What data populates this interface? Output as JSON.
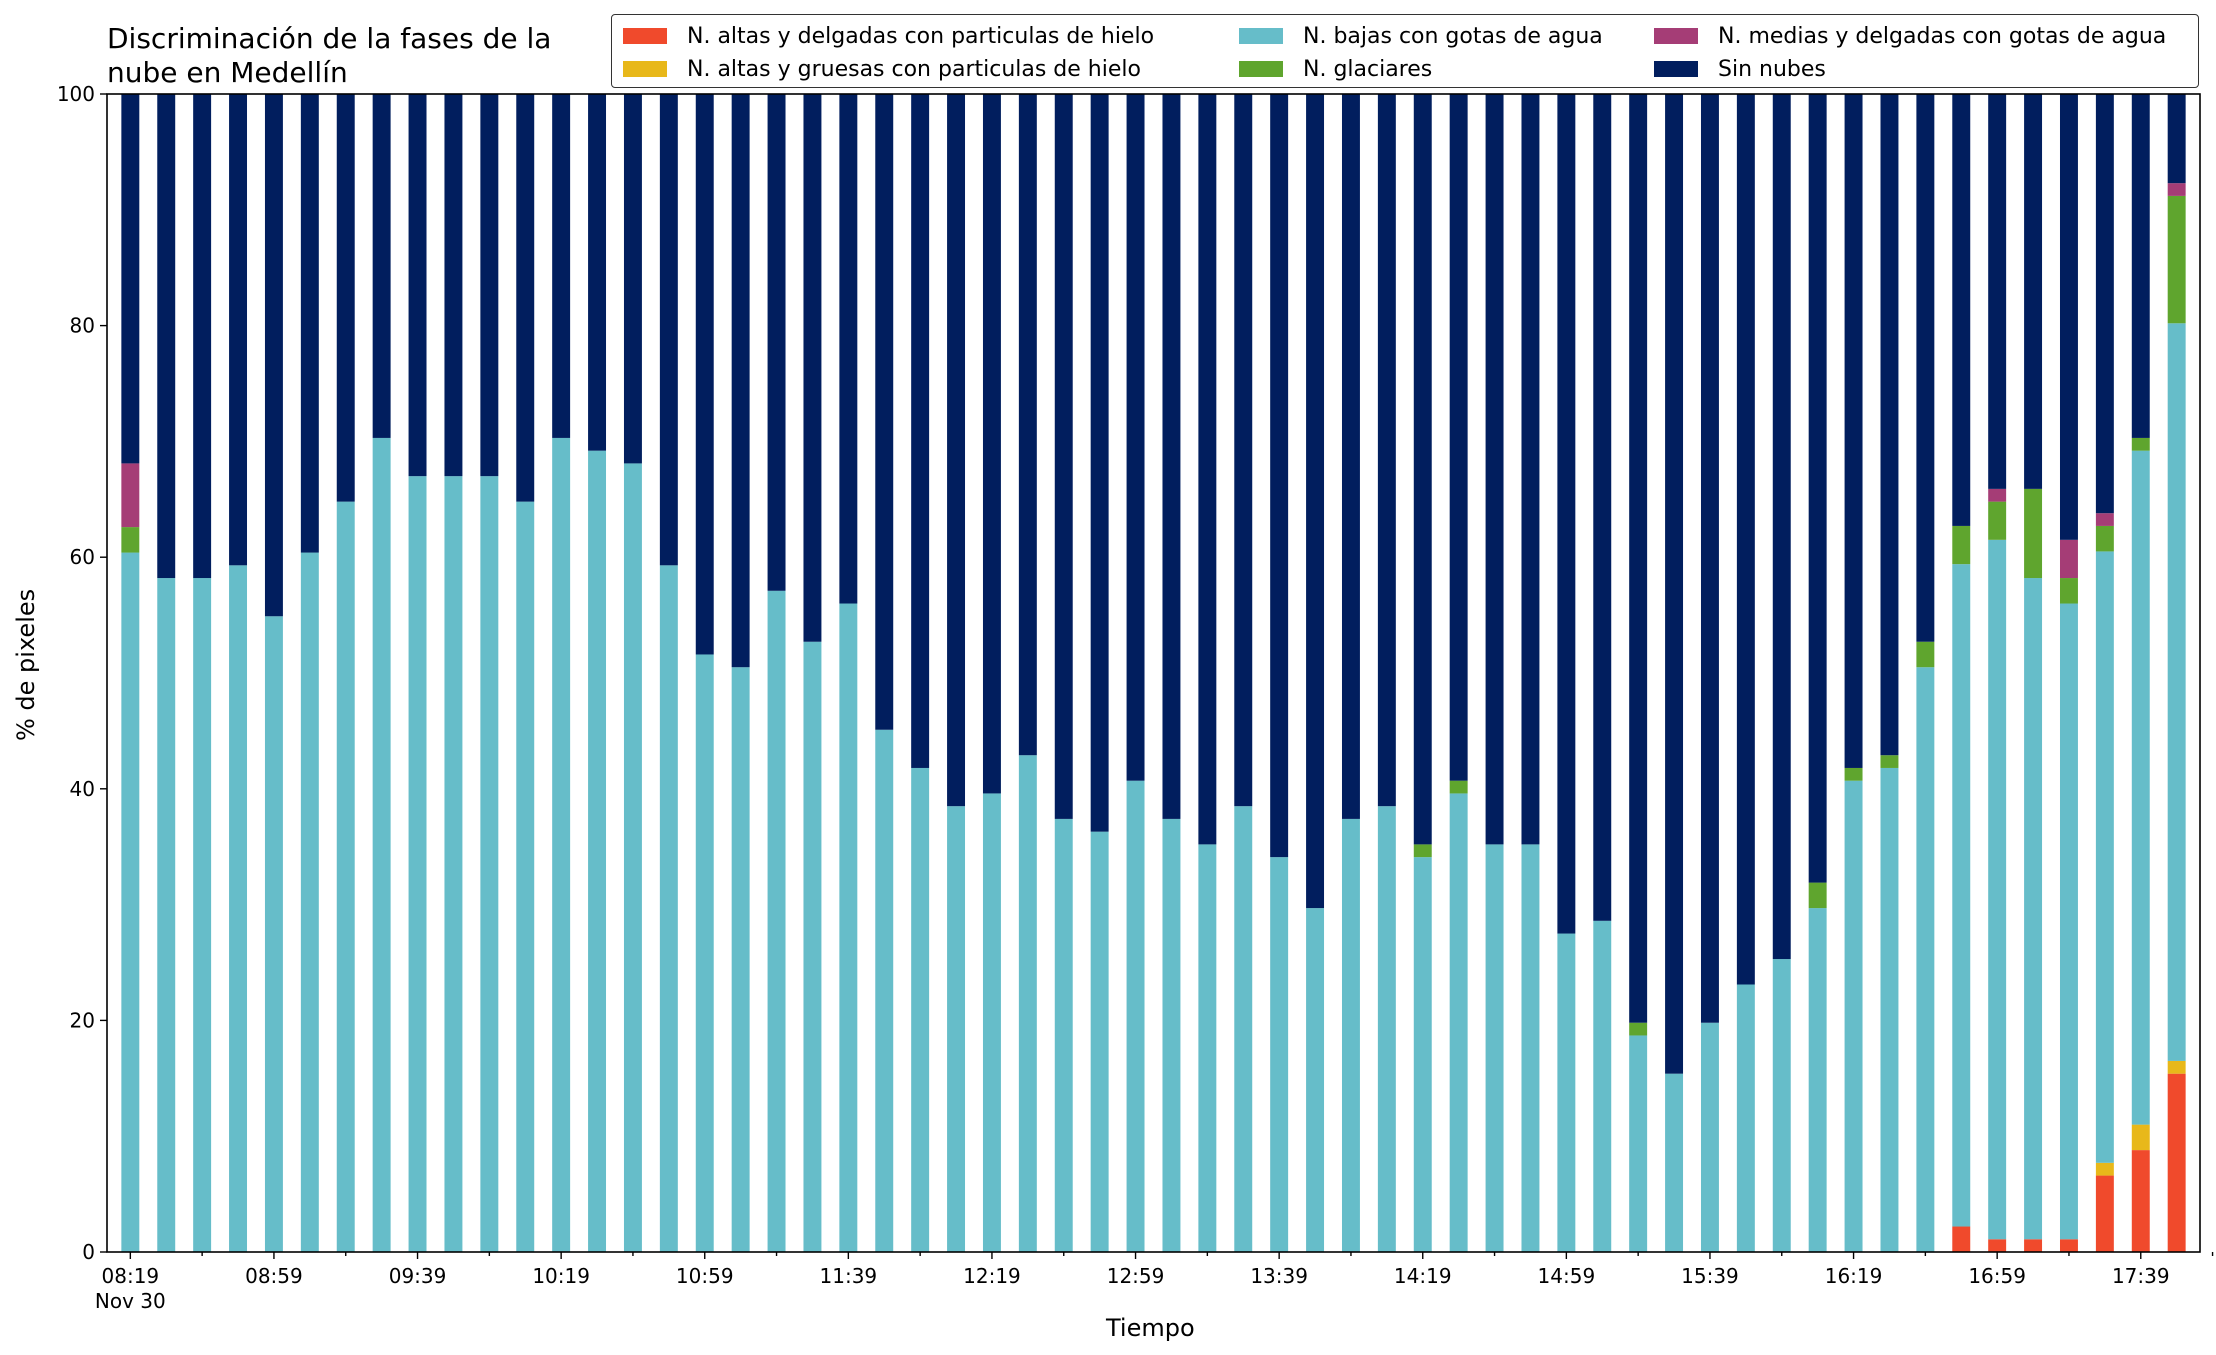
{
  "chart_data": {
    "type": "bar",
    "stacked": true,
    "title": [
      "Discriminación de la fases de la",
      "nube en Medellín"
    ],
    "xlabel": "Tiempo",
    "ylabel": "% de pixeles",
    "ylim": [
      0,
      100
    ],
    "yticks": [
      0,
      20,
      40,
      60,
      80,
      100
    ],
    "date_label": "Nov 30",
    "tick_labels": [
      "08:19",
      "08:59",
      "09:39",
      "10:19",
      "10:59",
      "11:39",
      "12:19",
      "12:59",
      "13:39",
      "14:19",
      "14:59",
      "15:39",
      "16:19",
      "16:59",
      "17:39"
    ],
    "x": [
      "08:19",
      "08:29",
      "08:39",
      "08:49",
      "08:59",
      "09:09",
      "09:19",
      "09:29",
      "09:39",
      "09:49",
      "09:59",
      "10:09",
      "10:19",
      "10:29",
      "10:39",
      "10:49",
      "10:59",
      "11:09",
      "11:19",
      "11:29",
      "11:39",
      "11:49",
      "11:59",
      "12:09",
      "12:19",
      "12:29",
      "12:39",
      "12:49",
      "12:59",
      "13:09",
      "13:19",
      "13:29",
      "13:39",
      "13:49",
      "13:59",
      "14:09",
      "14:19",
      "14:29",
      "14:39",
      "14:49",
      "14:59",
      "15:09",
      "15:19",
      "15:29",
      "15:39",
      "15:49",
      "15:59",
      "16:09",
      "16:19",
      "16:29",
      "16:39",
      "16:49",
      "16:59",
      "17:09",
      "17:19",
      "17:29",
      "17:39",
      "17:49"
    ],
    "grid": false,
    "legend_position": "top-right",
    "series": [
      {
        "name": "N. altas y delgadas con particulas de hielo",
        "color": "#f04a2c",
        "values": [
          0,
          0,
          0,
          0,
          0,
          0,
          0,
          0,
          0,
          0,
          0,
          0,
          0,
          0,
          0,
          0,
          0,
          0,
          0,
          0,
          0,
          0,
          0,
          0,
          0,
          0,
          0,
          0,
          0,
          0,
          0,
          0,
          0,
          0,
          0,
          0,
          0,
          0,
          0,
          0,
          0,
          0,
          0,
          0,
          0,
          0,
          0,
          0,
          0,
          0,
          0,
          2.2,
          1.1,
          1.1,
          1.1,
          6.6,
          8.8,
          15.4
        ]
      },
      {
        "name": "N. altas y gruesas con particulas de hielo",
        "color": "#e8b81a",
        "values": [
          0,
          0,
          0,
          0,
          0,
          0,
          0,
          0,
          0,
          0,
          0,
          0,
          0,
          0,
          0,
          0,
          0,
          0,
          0,
          0,
          0,
          0,
          0,
          0,
          0,
          0,
          0,
          0,
          0,
          0,
          0,
          0,
          0,
          0,
          0,
          0,
          0,
          0,
          0,
          0,
          0,
          0,
          0,
          0,
          0,
          0,
          0,
          0,
          0,
          0,
          0,
          0,
          0,
          0,
          0,
          1.1,
          2.2,
          1.1
        ]
      },
      {
        "name": "N. bajas con gotas de agua",
        "color": "#66bdc9",
        "values": [
          60.4,
          58.2,
          58.2,
          59.3,
          54.9,
          60.4,
          64.8,
          70.3,
          67.0,
          67.0,
          67.0,
          64.8,
          70.3,
          69.2,
          68.1,
          59.3,
          51.6,
          50.5,
          57.1,
          52.7,
          56.0,
          45.1,
          41.8,
          38.5,
          39.6,
          42.9,
          37.4,
          36.3,
          40.7,
          37.4,
          35.2,
          38.5,
          34.1,
          29.7,
          37.4,
          38.5,
          34.1,
          39.6,
          35.2,
          35.2,
          27.5,
          28.6,
          18.7,
          15.4,
          19.8,
          23.1,
          25.3,
          29.7,
          40.7,
          41.8,
          50.5,
          57.2,
          60.4,
          57.1,
          54.9,
          52.8,
          58.2,
          63.7
        ]
      },
      {
        "name": "N. glaciares",
        "color": "#5fa52e",
        "values": [
          2.2,
          0,
          0,
          0,
          0,
          0,
          0,
          0,
          0,
          0,
          0,
          0,
          0,
          0,
          0,
          0,
          0,
          0,
          0,
          0,
          0,
          0,
          0,
          0,
          0,
          0,
          0,
          0,
          0,
          0,
          0,
          0,
          0,
          0,
          0,
          0,
          1.1,
          1.1,
          0,
          0,
          0,
          0,
          1.1,
          0,
          0,
          0,
          0,
          2.2,
          1.1,
          1.1,
          2.2,
          3.3,
          3.3,
          7.7,
          2.2,
          2.2,
          1.1,
          11.0
        ]
      },
      {
        "name": "N. medias y delgadas con gotas de agua",
        "color": "#a53d76",
        "values": [
          5.5,
          0,
          0,
          0,
          0,
          0,
          0,
          0,
          0,
          0,
          0,
          0,
          0,
          0,
          0,
          0,
          0,
          0,
          0,
          0,
          0,
          0,
          0,
          0,
          0,
          0,
          0,
          0,
          0,
          0,
          0,
          0,
          0,
          0,
          0,
          0,
          0,
          0,
          0,
          0,
          0,
          0,
          0,
          0,
          0,
          0,
          0,
          0,
          0,
          0,
          0,
          0,
          1.1,
          0,
          3.3,
          1.1,
          0,
          1.1
        ]
      },
      {
        "name": "Sin nubes",
        "color": "#011e5e",
        "values": [
          31.9,
          41.8,
          41.8,
          40.7,
          45.1,
          39.6,
          35.2,
          29.7,
          33.0,
          33.0,
          33.0,
          35.2,
          29.7,
          30.8,
          31.9,
          40.7,
          48.4,
          49.5,
          42.9,
          47.3,
          44.0,
          54.9,
          58.2,
          61.5,
          60.4,
          57.1,
          62.6,
          63.7,
          59.3,
          62.6,
          64.8,
          61.5,
          65.9,
          70.3,
          62.6,
          61.5,
          64.8,
          59.3,
          64.8,
          64.8,
          72.5,
          71.4,
          80.2,
          84.6,
          80.2,
          76.9,
          74.7,
          68.1,
          58.2,
          57.1,
          47.3,
          37.3,
          34.1,
          34.1,
          38.5,
          36.2,
          29.7,
          7.7
        ]
      }
    ]
  }
}
